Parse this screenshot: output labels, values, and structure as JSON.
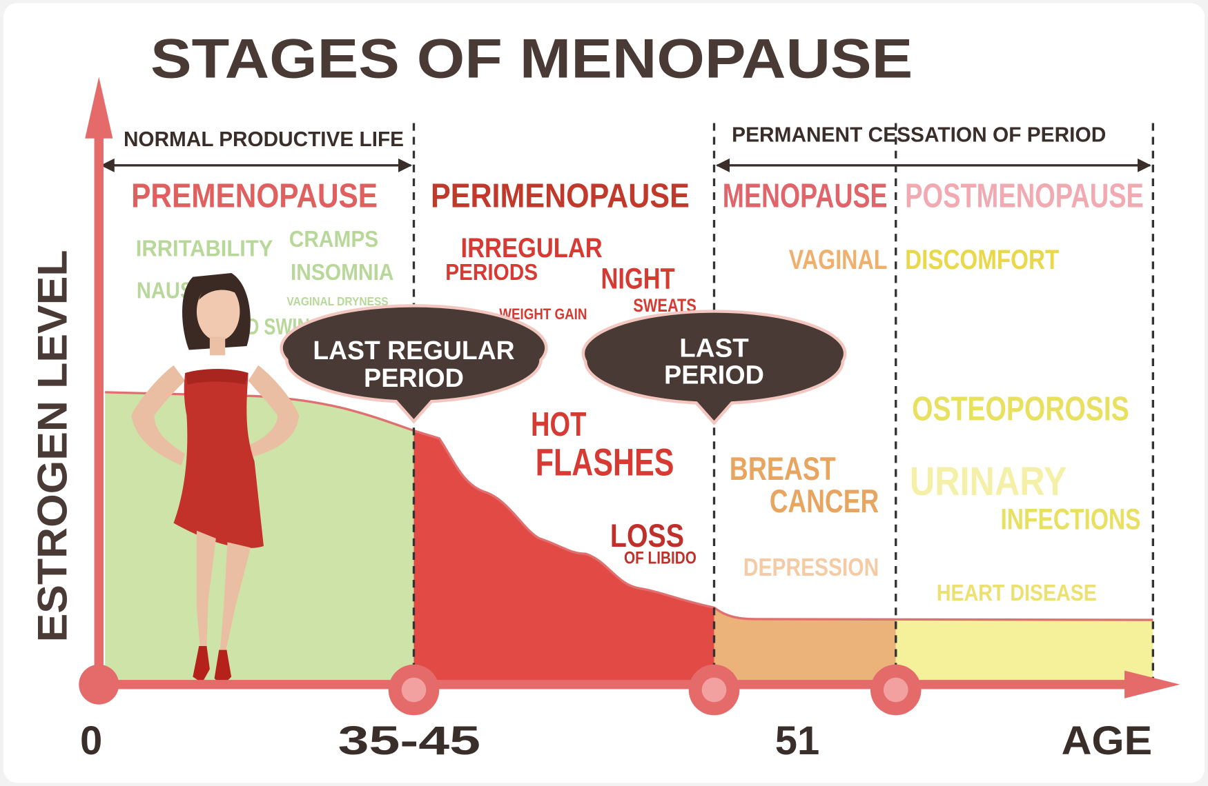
{
  "title": "STAGES OF MENOPAUSE",
  "y_axis_label": "ESTROGEN LEVEL",
  "x_axis_labels": [
    "0",
    "35-45",
    "51",
    "AGE"
  ],
  "ranges": [
    {
      "label": "NORMAL PRODUCTIVE LIFE"
    },
    {
      "label": "PERMANENT CESSATION OF PERIOD"
    }
  ],
  "stages": [
    {
      "name": "PREMENOPAUSE",
      "symptoms": [
        "IRRITABILITY",
        "CRAMPS",
        "INSOMNIA",
        "NAUSEA",
        "VAGINAL DRYNESS",
        "MOOD SWINGS"
      ]
    },
    {
      "name": "PERIMENOPAUSE",
      "symptoms": [
        "IRREGULAR",
        "PERIODS",
        "NIGHT",
        "SWEATS",
        "WEIGHT GAIN",
        "HOT",
        "FLASHES",
        "LOSS",
        "OF LIBIDO"
      ]
    },
    {
      "name": "MENOPAUSE",
      "symptoms": [
        "VAGINAL",
        "BREAST",
        "CANCER",
        "DEPRESSION"
      ]
    },
    {
      "name": "POSTMENOPAUSE",
      "symptoms": [
        "DISCOMFORT",
        "OSTEOPOROSIS",
        "URINARY",
        "INFECTIONS",
        "HEART DISEASE"
      ]
    }
  ],
  "callouts": [
    {
      "lines": [
        "LAST REGULAR",
        "PERIOD"
      ]
    },
    {
      "lines": [
        "LAST",
        "PERIOD"
      ]
    }
  ]
}
